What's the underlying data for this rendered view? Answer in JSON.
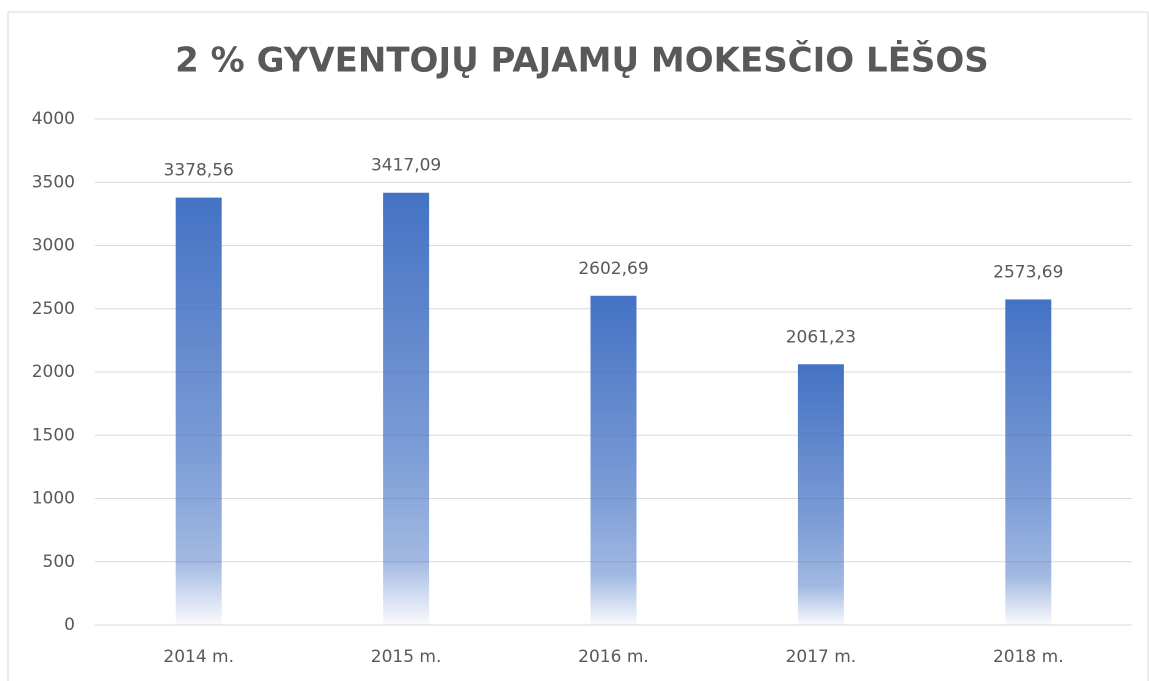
{
  "chart_data": {
    "type": "bar",
    "title": "2 % GYVENTOJŲ PAJAMŲ MOKESČIO LĖŠOS",
    "categories": [
      "2014 m.",
      "2015 m.",
      "2016 m.",
      "2017 m.",
      "2018 m."
    ],
    "values": [
      3378.56,
      3417.09,
      2602.69,
      2061.23,
      2573.69
    ],
    "value_labels": [
      "3378,56",
      "3417,09",
      "2602,69",
      "2061,23",
      "2573,69"
    ],
    "color": "#4472c4",
    "ylim": [
      0,
      4000
    ],
    "yticks": [
      0,
      500,
      1000,
      1500,
      2000,
      2500,
      3000,
      3500,
      4000
    ],
    "grid": true
  }
}
